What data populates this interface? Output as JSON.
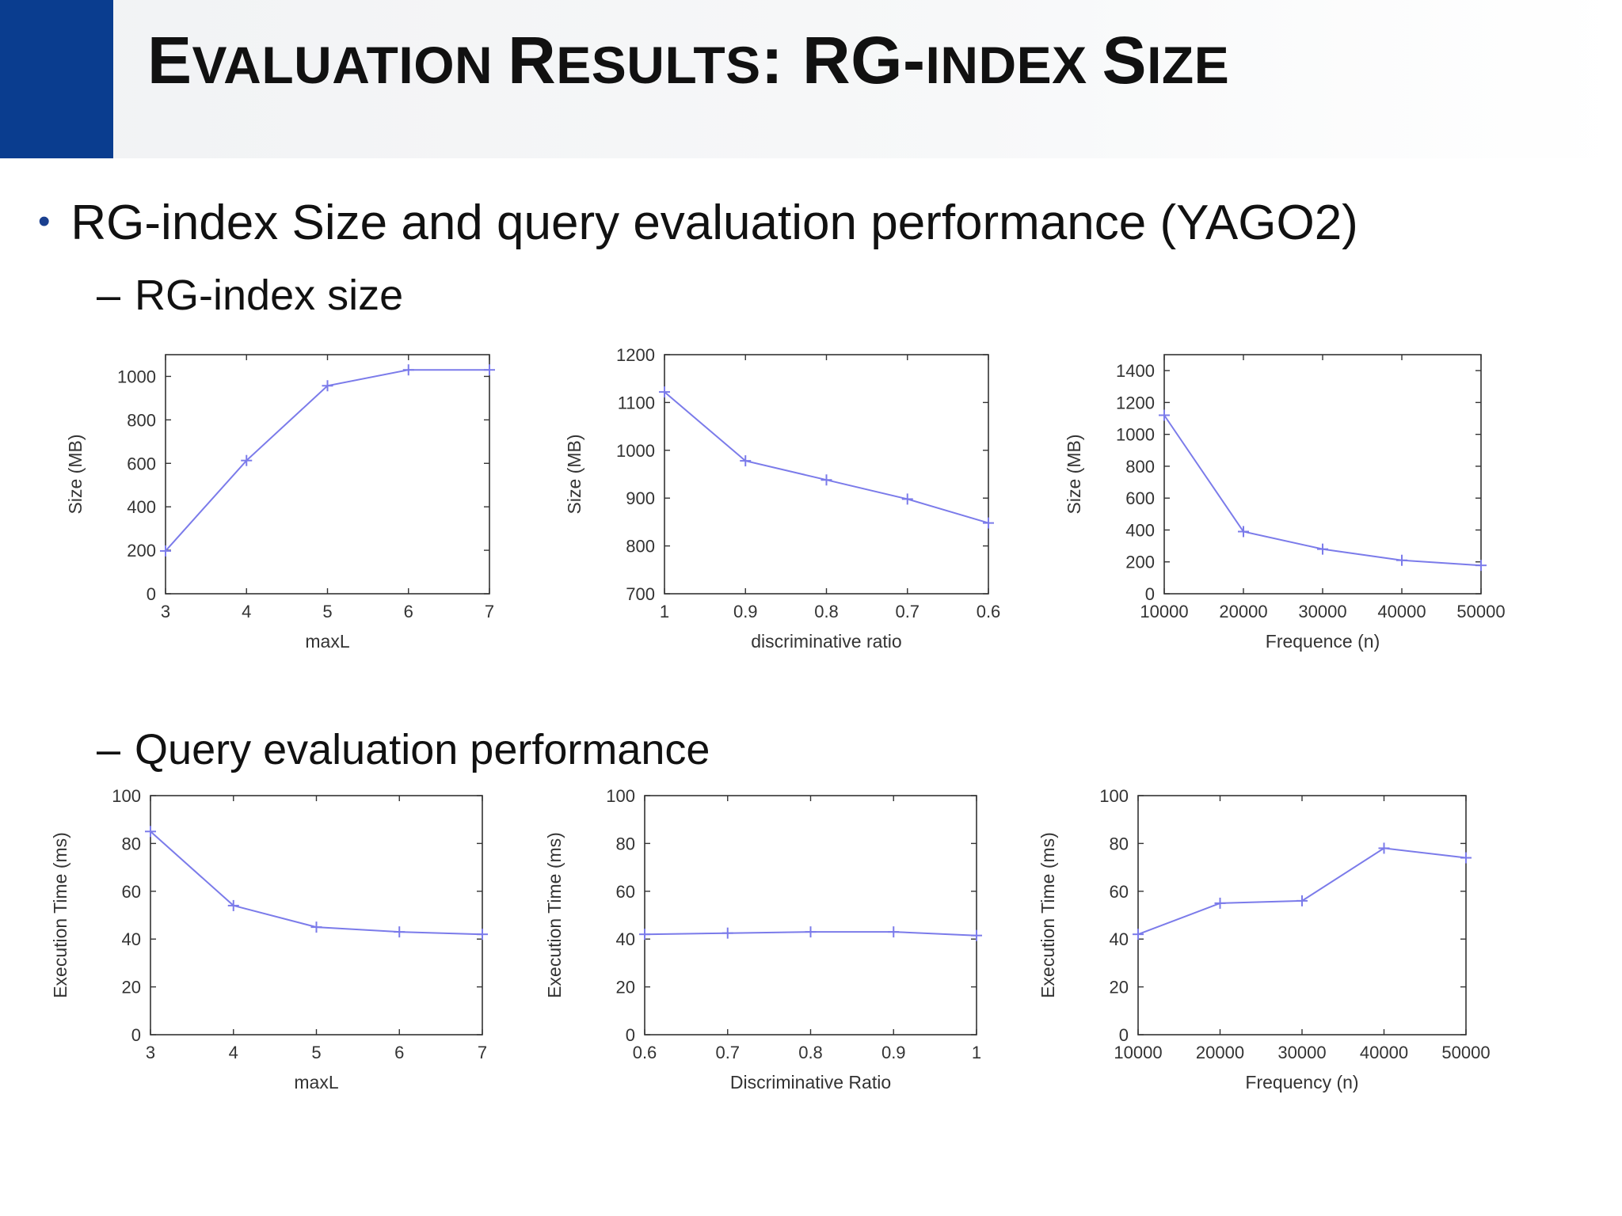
{
  "slide": {
    "title_parts": [
      "E",
      "VALUATION ",
      "R",
      "ESULTS",
      ": RG-",
      "INDEX ",
      "S",
      "IZE"
    ],
    "bullet": "RG-index Size and query evaluation performance (YAGO2)",
    "sub_items": [
      {
        "dash": "–",
        "label": "RG-index size"
      },
      {
        "dash": "–",
        "label": "Query evaluation performance"
      }
    ]
  },
  "colors": {
    "accent": "#0a3d8f",
    "series_line": "#7b7bea",
    "axis": "#333333"
  },
  "chart_data": [
    {
      "type": "line",
      "x": [
        3,
        4,
        5,
        6,
        7
      ],
      "values": [
        197,
        613,
        957,
        1030,
        1030
      ],
      "xlabel": "maxL",
      "ylabel": "Size (MB)",
      "xlim": [
        3,
        7
      ],
      "ylim": [
        0,
        1100
      ],
      "xticks": [
        3,
        4,
        5,
        6,
        7
      ],
      "xtick_labels": [
        "3",
        "4",
        "5",
        "6",
        "7"
      ],
      "yticks": [
        0,
        200,
        400,
        600,
        800,
        1000
      ],
      "grid": false,
      "xreverse": false
    },
    {
      "type": "line",
      "x": [
        1,
        0.9,
        0.8,
        0.7,
        0.6
      ],
      "values": [
        1122,
        978,
        938,
        898,
        848
      ],
      "xlabel": "discriminative ratio",
      "ylabel": "Size (MB)",
      "xlim": [
        1,
        0.6
      ],
      "ylim": [
        700,
        1200
      ],
      "xticks": [
        1,
        0.9,
        0.8,
        0.7,
        0.6
      ],
      "xtick_labels": [
        "1",
        "0.9",
        "0.8",
        "0.7",
        "0.6"
      ],
      "yticks": [
        700,
        800,
        900,
        1000,
        1100,
        1200
      ],
      "grid": false,
      "xreverse": true
    },
    {
      "type": "line",
      "x": [
        10000,
        20000,
        30000,
        40000,
        50000
      ],
      "values": [
        1120,
        390,
        280,
        210,
        178
      ],
      "xlabel": "Frequence (n)",
      "ylabel": "Size (MB)",
      "xlim": [
        10000,
        50000
      ],
      "ylim": [
        0,
        1500
      ],
      "xticks": [
        10000,
        20000,
        30000,
        40000,
        50000
      ],
      "xtick_labels": [
        "10000",
        "20000",
        "30000",
        "40000",
        "50000"
      ],
      "yticks": [
        0,
        200,
        400,
        600,
        800,
        1000,
        1200,
        1400
      ],
      "grid": false,
      "xreverse": false
    },
    {
      "type": "line",
      "x": [
        3,
        4,
        5,
        6,
        7
      ],
      "values": [
        85,
        54,
        45,
        43,
        42
      ],
      "xlabel": "maxL",
      "ylabel": "Execution Time (ms)",
      "xlim": [
        3,
        7
      ],
      "ylim": [
        0,
        100
      ],
      "xticks": [
        3,
        4,
        5,
        6,
        7
      ],
      "xtick_labels": [
        "3",
        "4",
        "5",
        "6",
        "7"
      ],
      "yticks": [
        0,
        20,
        40,
        60,
        80,
        100
      ],
      "grid": false,
      "xreverse": false
    },
    {
      "type": "line",
      "x": [
        0.6,
        0.7,
        0.8,
        0.9,
        1
      ],
      "values": [
        42,
        42.5,
        43,
        43,
        41.5
      ],
      "xlabel": "Discriminative Ratio",
      "ylabel": "Execution Time (ms)",
      "xlim": [
        0.6,
        1
      ],
      "ylim": [
        0,
        100
      ],
      "xticks": [
        0.6,
        0.7,
        0.8,
        0.9,
        1
      ],
      "xtick_labels": [
        "0.6",
        "0.7",
        "0.8",
        "0.9",
        "1"
      ],
      "yticks": [
        0,
        20,
        40,
        60,
        80,
        100
      ],
      "grid": false,
      "xreverse": false
    },
    {
      "type": "line",
      "x": [
        10000,
        20000,
        30000,
        40000,
        50000
      ],
      "values": [
        42,
        55,
        56,
        78,
        74
      ],
      "xlabel": "Frequency (n)",
      "ylabel": "Execution Time (ms)",
      "xlim": [
        10000,
        50000
      ],
      "ylim": [
        0,
        100
      ],
      "xticks": [
        10000,
        20000,
        30000,
        40000,
        50000
      ],
      "xtick_labels": [
        "10000",
        "20000",
        "30000",
        "40000",
        "50000"
      ],
      "yticks": [
        0,
        20,
        40,
        60,
        80,
        100
      ],
      "grid": false,
      "xreverse": false
    }
  ]
}
